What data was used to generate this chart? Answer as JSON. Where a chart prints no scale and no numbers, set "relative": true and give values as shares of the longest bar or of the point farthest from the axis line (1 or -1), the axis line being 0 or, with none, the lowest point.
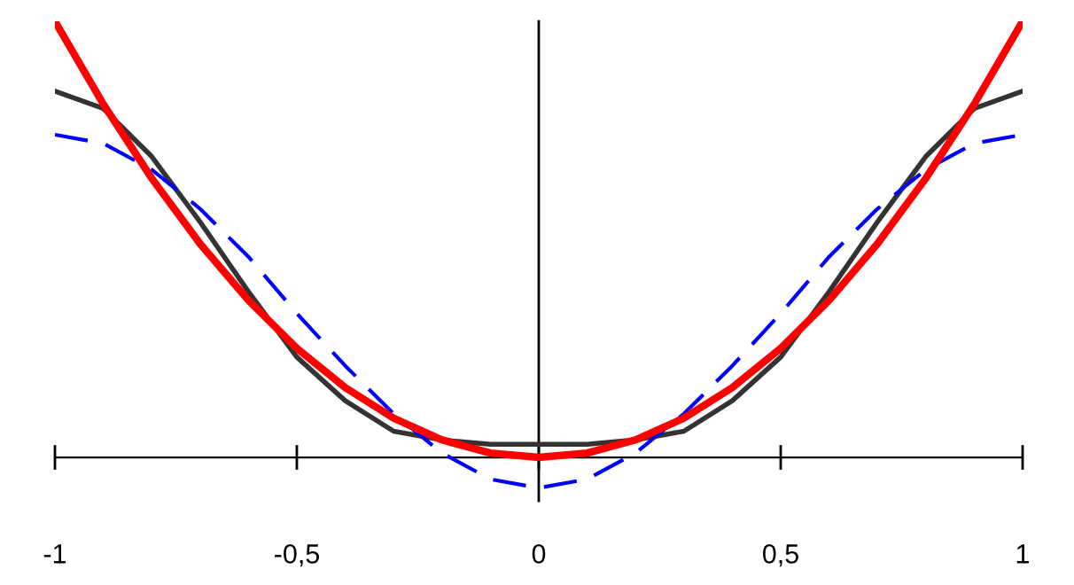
{
  "chart_data": {
    "type": "line",
    "relative": true,
    "legend": false,
    "marker": "none",
    "xlim": [
      -1,
      1
    ],
    "xticks": [
      -1,
      {
        "value": -0.5,
        "label": "-0,5"
      },
      0,
      {
        "value": 0.5,
        "label": "0,5"
      },
      1
    ],
    "series": [
      {
        "color": "#333333",
        "line_style": "solid",
        "x": [
          -1,
          -0.9,
          -0.8,
          -0.7,
          -0.6,
          -0.5,
          -0.4,
          -0.3,
          -0.2,
          -0.1,
          0,
          0.1,
          0.2,
          0.3,
          0.4,
          0.5,
          0.6,
          0.7,
          0.8,
          0.9,
          1
        ],
        "values": [
          0.84,
          0.8,
          0.69,
          0.54,
          0.38,
          0.23,
          0.13,
          0.06,
          0.04,
          0.03,
          0.03,
          0.03,
          0.04,
          0.06,
          0.13,
          0.23,
          0.38,
          0.54,
          0.69,
          0.8,
          0.84
        ]
      },
      {
        "color": "#0000ff",
        "line_style": "dashed",
        "x": [
          -1,
          -0.9,
          -0.8,
          -0.7,
          -0.6,
          -0.5,
          -0.4,
          -0.3,
          -0.2,
          -0.1,
          0,
          0.1,
          0.2,
          0.3,
          0.4,
          0.5,
          0.6,
          0.7,
          0.8,
          0.9,
          1
        ],
        "values": [
          0.74,
          0.72,
          0.66,
          0.57,
          0.46,
          0.33,
          0.21,
          0.1,
          0.01,
          -0.05,
          -0.07,
          -0.05,
          0.01,
          0.1,
          0.21,
          0.33,
          0.46,
          0.57,
          0.66,
          0.72,
          0.74
        ]
      },
      {
        "color": "#ff0000",
        "line_style": "solid",
        "x": [
          -1,
          -0.9,
          -0.8,
          -0.7,
          -0.6,
          -0.5,
          -0.4,
          -0.3,
          -0.2,
          -0.1,
          0,
          0.1,
          0.2,
          0.3,
          0.4,
          0.5,
          0.6,
          0.7,
          0.8,
          0.9,
          1
        ],
        "values": [
          1,
          0.81,
          0.64,
          0.49,
          0.36,
          0.25,
          0.16,
          0.09,
          0.04,
          0.01,
          0,
          0.01,
          0.04,
          0.09,
          0.16,
          0.25,
          0.36,
          0.49,
          0.64,
          0.81,
          1
        ]
      }
    ]
  }
}
